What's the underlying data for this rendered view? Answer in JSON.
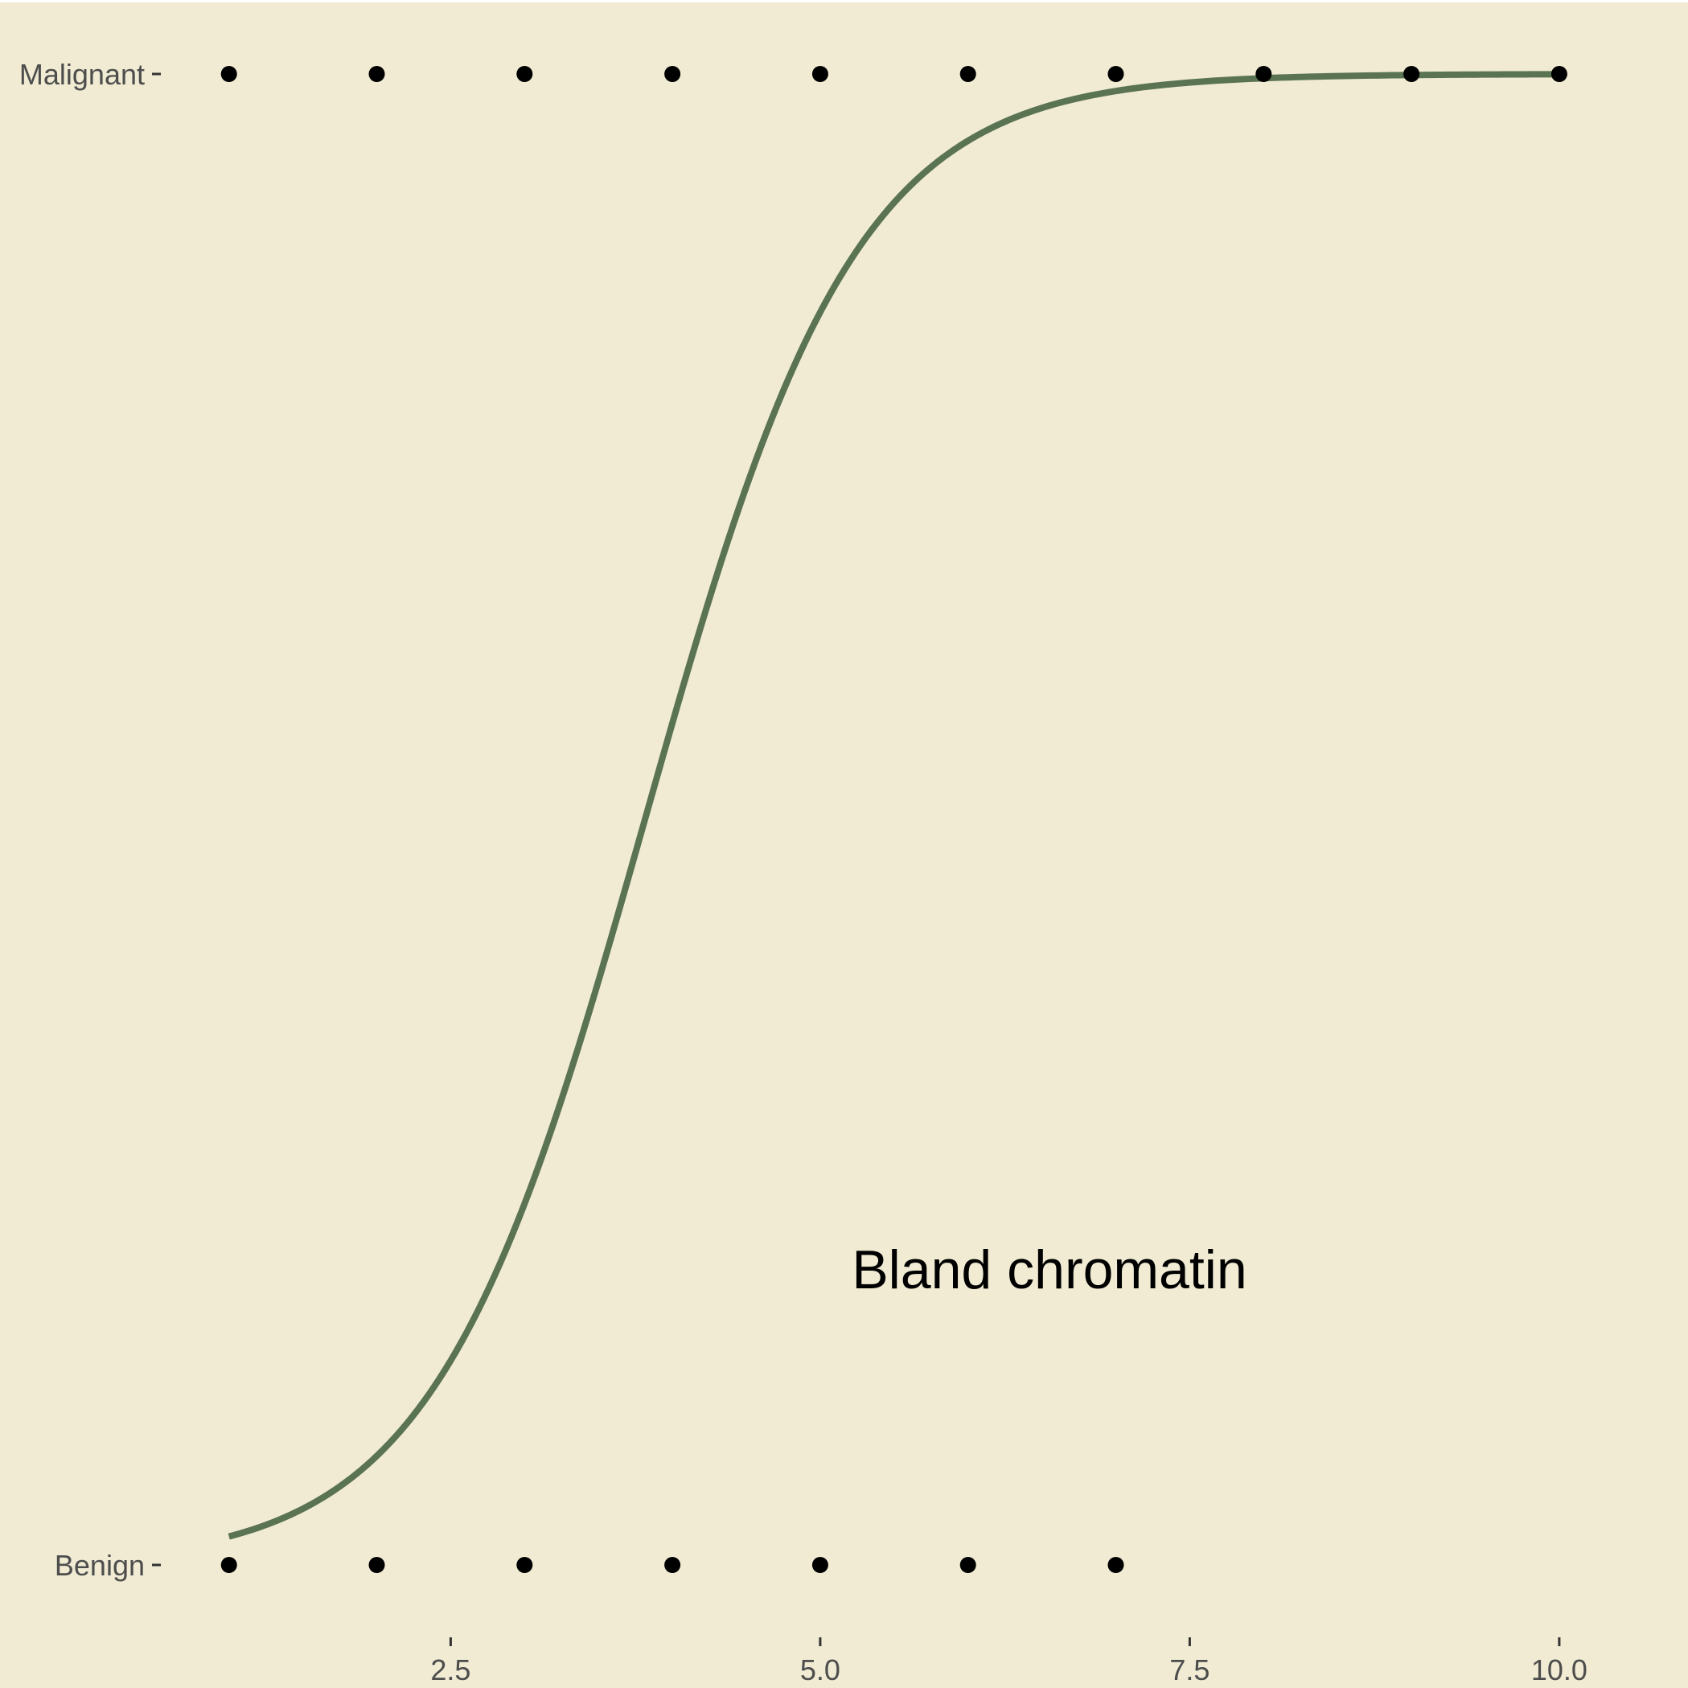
{
  "chart_data": {
    "type": "scatter",
    "annotation": "Bland chromatin",
    "xlim": [
      0.55,
      10.55
    ],
    "x_ticks": [
      {
        "value": 2.5,
        "label": "2.5"
      },
      {
        "value": 5.0,
        "label": "5.0"
      },
      {
        "value": 7.5,
        "label": "7.5"
      },
      {
        "value": 10.0,
        "label": "10.0"
      }
    ],
    "y_categories": [
      "Benign",
      "Malignant"
    ],
    "points": {
      "Malignant": [
        1,
        2,
        3,
        4,
        5,
        6,
        7,
        8,
        9,
        10
      ],
      "Benign": [
        1,
        2,
        3,
        4,
        5,
        6,
        7
      ]
    },
    "fitted_curve": {
      "kind": "logistic",
      "x_range": [
        1,
        10
      ],
      "intercept": -5.34,
      "slope": 1.4
    },
    "grid": false,
    "legend": "none",
    "colors": {
      "background": "#f0ebd2",
      "points": "#000000",
      "curve": "#5a7352",
      "tick_text": "#4d4d4d"
    }
  }
}
